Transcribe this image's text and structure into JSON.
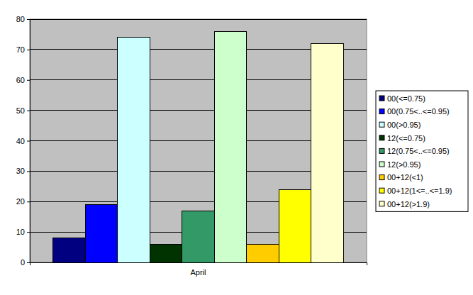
{
  "chart_data": {
    "type": "bar",
    "categories": [
      "April"
    ],
    "series": [
      {
        "name": "00(<=0.75)",
        "color": "#000080",
        "values": [
          8
        ]
      },
      {
        "name": "00(0.75<..<=0.95)",
        "color": "#0000ff",
        "values": [
          19
        ]
      },
      {
        "name": "00(>0.95)",
        "color": "#ccffff",
        "values": [
          74
        ]
      },
      {
        "name": "12(<=0.75)",
        "color": "#003300",
        "values": [
          6
        ]
      },
      {
        "name": "12(0.75<..<=0.95)",
        "color": "#339966",
        "values": [
          17
        ]
      },
      {
        "name": "12(>0.95)",
        "color": "#ccffcc",
        "values": [
          76
        ]
      },
      {
        "name": "00+12(<1)",
        "color": "#ffcc00",
        "values": [
          6
        ]
      },
      {
        "name": "00+12(1<=..<=1.9)",
        "color": "#ffff00",
        "values": [
          24
        ]
      },
      {
        "name": "00+12(>1.9)",
        "color": "#ffffcc",
        "values": [
          72
        ]
      }
    ],
    "ylim": [
      0,
      80
    ],
    "yticks": [
      0,
      10,
      20,
      30,
      40,
      50,
      60,
      70,
      80
    ],
    "grid": true,
    "legend": "right"
  }
}
